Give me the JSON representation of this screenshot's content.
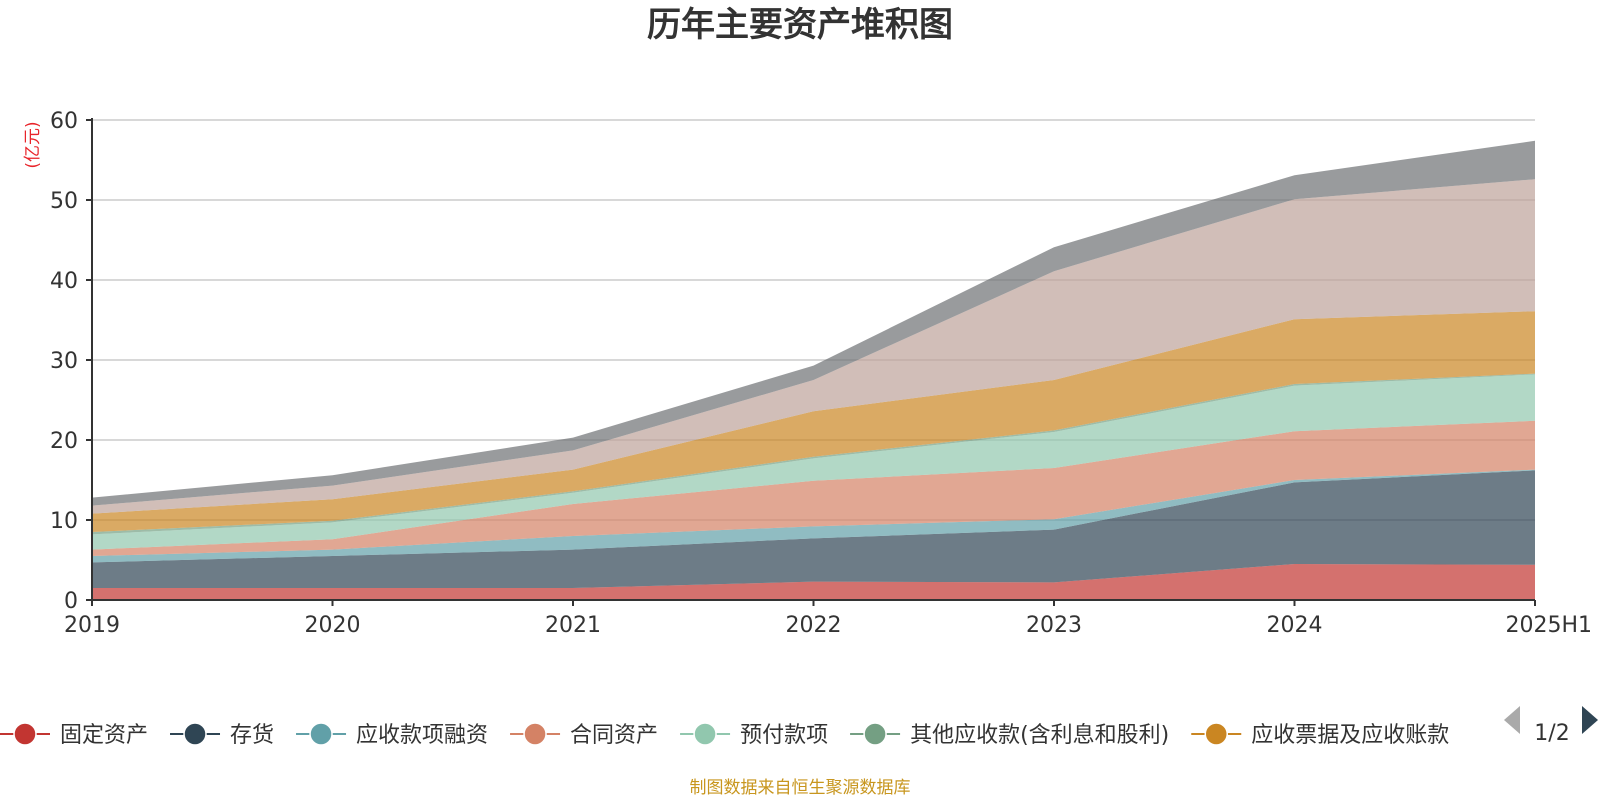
{
  "chart_data": {
    "type": "area",
    "stacked": true,
    "title": "历年主要资产堆积图",
    "ylabel": "(亿元)",
    "ylim": [
      0,
      60
    ],
    "yticks": [
      0,
      10,
      20,
      30,
      40,
      50,
      60
    ],
    "grid": true,
    "categories": [
      "2019",
      "2020",
      "2021",
      "2022",
      "2023",
      "2024",
      "2025H1"
    ],
    "series": [
      {
        "name": "固定资产",
        "color": "#c23531",
        "values": [
          1.5,
          1.5,
          1.5,
          2.3,
          2.2,
          4.5,
          4.4
        ]
      },
      {
        "name": "存货",
        "color": "#2f4554",
        "values": [
          3.2,
          4.0,
          4.8,
          5.4,
          6.6,
          10.2,
          11.8
        ]
      },
      {
        "name": "应收款项融资",
        "color": "#61a0a8",
        "values": [
          0.8,
          0.8,
          1.7,
          1.5,
          1.3,
          0.3,
          0.1
        ]
      },
      {
        "name": "合同资产",
        "color": "#d48265",
        "values": [
          0.8,
          1.3,
          4.0,
          5.7,
          6.4,
          6.1,
          6.1
        ]
      },
      {
        "name": "预付款项",
        "color": "#91c7ae",
        "values": [
          1.9,
          2.1,
          1.4,
          2.8,
          4.5,
          5.7,
          5.8
        ]
      },
      {
        "name": "其他应收款(含利息和股利)",
        "color": "#749f83",
        "values": [
          0.3,
          0.2,
          0.2,
          0.2,
          0.2,
          0.2,
          0.1
        ]
      },
      {
        "name": "应收票据及应收账款",
        "color": "#ca8622",
        "values": [
          2.3,
          2.7,
          2.7,
          5.7,
          6.3,
          8.1,
          7.8
        ]
      },
      {
        "name": "",
        "color": "#bda29a",
        "values": [
          1.0,
          1.7,
          2.4,
          3.9,
          13.6,
          15.0,
          16.5
        ]
      },
      {
        "name": "",
        "color": "#6e7074",
        "values": [
          1.0,
          1.3,
          1.6,
          1.8,
          3.0,
          3.0,
          4.8
        ]
      }
    ],
    "legend": {
      "position": "bottom",
      "page": "1/2"
    }
  },
  "footer": {
    "source": "制图数据来自恒生聚源数据库"
  },
  "icons": {
    "legend_prev": "left-triangle-icon",
    "legend_next": "right-triangle-icon"
  }
}
